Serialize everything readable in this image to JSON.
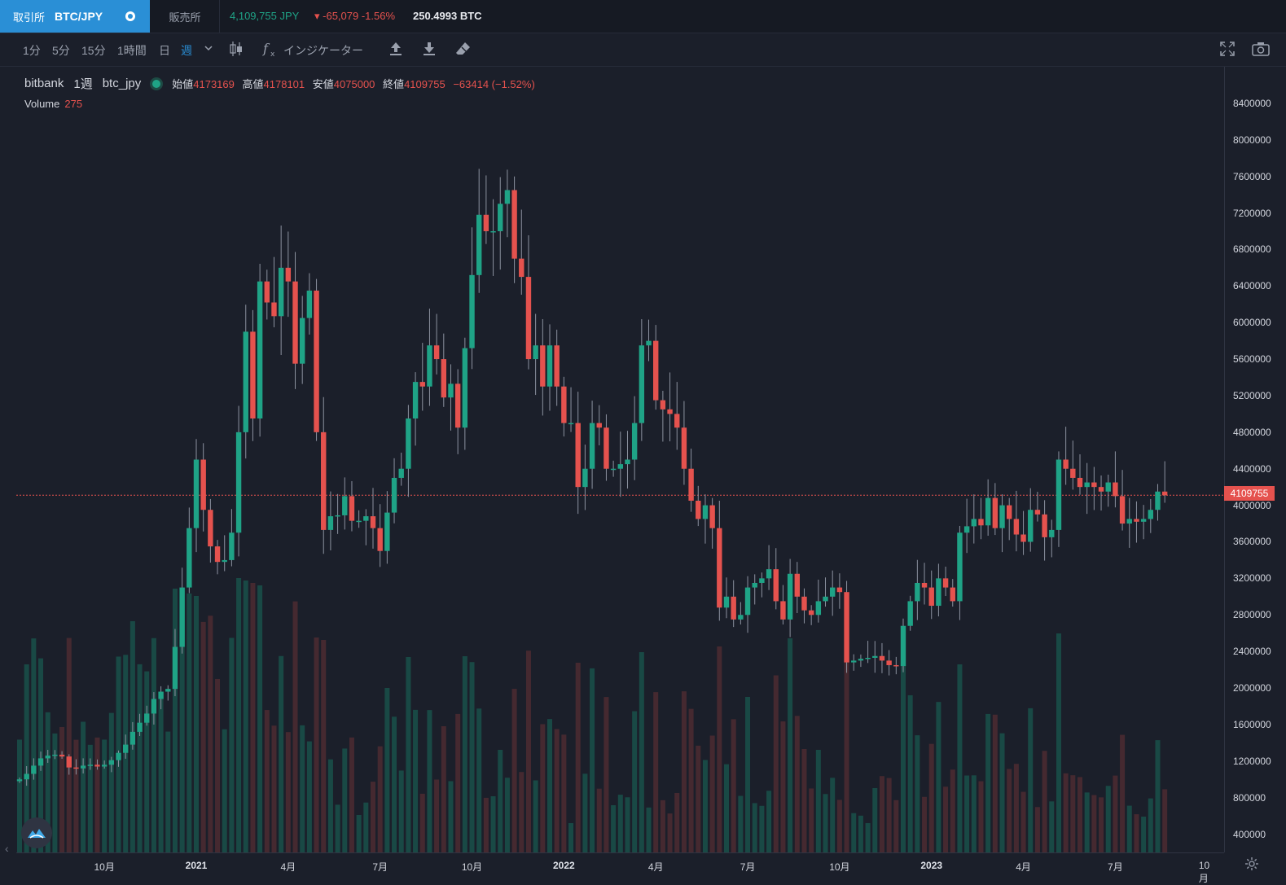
{
  "topbar": {
    "exchange_tab": "取引所",
    "pair": "BTC/JPY",
    "sales_tab": "販売所",
    "price": "4,109,755 JPY",
    "change": "-65,079 -1.56%",
    "volume": "250.4993 BTC"
  },
  "toolbar": {
    "timeframes": [
      "1分",
      "5分",
      "15分",
      "1時間",
      "日",
      "週"
    ],
    "active_timeframe": "週",
    "indicator_label": "インジケーター",
    "icons": [
      "chevron-down-icon",
      "candlestick-icon",
      "function-icon",
      "upload-icon",
      "download-icon",
      "eraser-icon",
      "fullscreen-icon",
      "camera-icon"
    ]
  },
  "legend": {
    "exchange": "bitbank",
    "interval": "1週",
    "symbol": "btc_jpy",
    "open_label": "始値",
    "open": "4173169",
    "high_label": "高値",
    "high": "4178101",
    "low_label": "安値",
    "low": "4075000",
    "close_label": "終値",
    "close": "4109755",
    "change": "−63414 (−1.52%)",
    "volume_label": "Volume",
    "volume": "275"
  },
  "last_price": "4109755",
  "colors": {
    "up": "#1fa386",
    "down": "#e5524e",
    "accent": "#2a8fd6",
    "background": "#1b1f2a"
  },
  "chart_data": {
    "type": "candlestick",
    "interval": "1週",
    "symbol": "btc_jpy",
    "y_ticks": [
      "8400000",
      "8000000",
      "7600000",
      "7200000",
      "6800000",
      "6400000",
      "6000000",
      "5600000",
      "5200000",
      "4800000",
      "4400000",
      "4000000",
      "3600000",
      "3200000",
      "2800000",
      "2400000",
      "2000000",
      "1600000",
      "1200000",
      "800000",
      "400000"
    ],
    "ylim": [
      200000,
      8800000
    ],
    "x_ticks": [
      {
        "label": "10月",
        "bold": false,
        "i": 12
      },
      {
        "label": "2021",
        "bold": true,
        "i": 25
      },
      {
        "label": "4月",
        "bold": false,
        "i": 38
      },
      {
        "label": "7月",
        "bold": false,
        "i": 51
      },
      {
        "label": "10月",
        "bold": false,
        "i": 64
      },
      {
        "label": "2022",
        "bold": true,
        "i": 77
      },
      {
        "label": "4月",
        "bold": false,
        "i": 90
      },
      {
        "label": "7月",
        "bold": false,
        "i": 103
      },
      {
        "label": "10月",
        "bold": false,
        "i": 116
      },
      {
        "label": "2023",
        "bold": true,
        "i": 129
      },
      {
        "label": "4月",
        "bold": false,
        "i": 142
      },
      {
        "label": "7月",
        "bold": false,
        "i": 155
      },
      {
        "label": "10月",
        "bold": false,
        "i": 168
      }
    ],
    "close": [
      1000000,
      1060000,
      1150000,
      1230000,
      1260000,
      1270000,
      1250000,
      1130000,
      1120000,
      1150000,
      1160000,
      1140000,
      1160000,
      1210000,
      1290000,
      1380000,
      1520000,
      1620000,
      1720000,
      1880000,
      1960000,
      1990000,
      2450000,
      3100000,
      3750000,
      4500000,
      3950000,
      3550000,
      3380000,
      3400000,
      3700000,
      4800000,
      5900000,
      4950000,
      6450000,
      6220000,
      6070000,
      6600000,
      6450000,
      5550000,
      6050000,
      6350000,
      4800000,
      3730000,
      3880000,
      3890000,
      4100000,
      3830000,
      3830000,
      3880000,
      3750000,
      3500000,
      3920000,
      4300000,
      4400000,
      4950000,
      5350000,
      5300000,
      5750000,
      5600000,
      5180000,
      5330000,
      4850000,
      5720000,
      6520000,
      7180000,
      7000000,
      7000000,
      7300000,
      7450000,
      6700000,
      6500000,
      5600000,
      5750000,
      5300000,
      5750000,
      5300000,
      4900000,
      4900000,
      4200000,
      4400000,
      4900000,
      4850000,
      4400000,
      4400000,
      4450000,
      4500000,
      4900000,
      5750000,
      5800000,
      5150000,
      5050000,
      5000000,
      4850000,
      4400000,
      4050000,
      3850000,
      4000000,
      3750000,
      2880000,
      3000000,
      2750000,
      2800000,
      3100000,
      3150000,
      3200000,
      3300000,
      2950000,
      2750000,
      3250000,
      3000000,
      2850000,
      2800000,
      2950000,
      3000000,
      3100000,
      3050000,
      2280000,
      2300000,
      2320000,
      2330000,
      2350000,
      2300000,
      2250000,
      2240000,
      2680000,
      2950000,
      3150000,
      3100000,
      2900000,
      3200000,
      3100000,
      2950000,
      3700000,
      3770000,
      3850000,
      3780000,
      4080000,
      3750000,
      4000000,
      3850000,
      3680000,
      3600000,
      3950000,
      3900000,
      3650000,
      3730000,
      4500000,
      4400000,
      4300000,
      4200000,
      4250000,
      4200000,
      4150000,
      4250000,
      4100000,
      3800000,
      3850000,
      3820000,
      3850000,
      3950000,
      4150000,
      4109755
    ],
    "volume_max": 6000000
  }
}
